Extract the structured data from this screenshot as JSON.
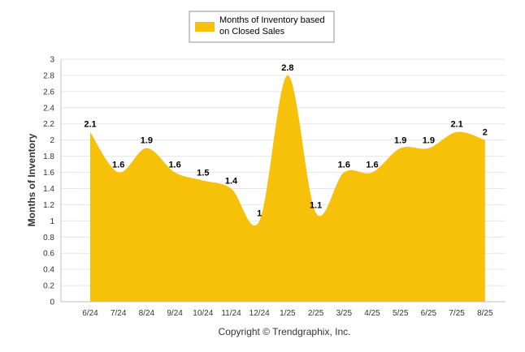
{
  "chart_data": {
    "type": "area",
    "categories": [
      "6/24",
      "7/24",
      "8/24",
      "9/24",
      "10/24",
      "11/24",
      "12/24",
      "1/25",
      "2/25",
      "3/25",
      "4/25",
      "5/25",
      "6/25",
      "7/25",
      "8/25"
    ],
    "series": [
      {
        "name": "Months of Inventory based on Closed Sales",
        "values": [
          2.1,
          1.6,
          1.9,
          1.6,
          1.5,
          1.4,
          1,
          2.8,
          1.1,
          1.6,
          1.6,
          1.9,
          1.9,
          2.1,
          2
        ]
      }
    ],
    "data_labels": [
      "2.1",
      "1.6",
      "1.9",
      "1.6",
      "1.5",
      "1.4",
      "1",
      "2.8",
      "1.1",
      "1.6",
      "1.6",
      "1.9",
      "1.9",
      "2.1",
      "2"
    ],
    "xlabel": "",
    "ylabel": "Months of Inventory",
    "ylim": [
      0,
      3
    ],
    "yticks": [
      "0",
      "0.2",
      "0.4",
      "0.6",
      "0.8",
      "1",
      "1.2",
      "1.4",
      "1.6",
      "1.8",
      "2",
      "2.2",
      "2.4",
      "2.6",
      "2.8",
      "3"
    ],
    "grid": true,
    "legend_position": "top-center",
    "legend_label_lines": [
      "Months of Inventory based",
      "on Closed Sales"
    ],
    "fill_color": "#F7C10A",
    "credit": "Copyright © Trendgraphix, Inc."
  }
}
